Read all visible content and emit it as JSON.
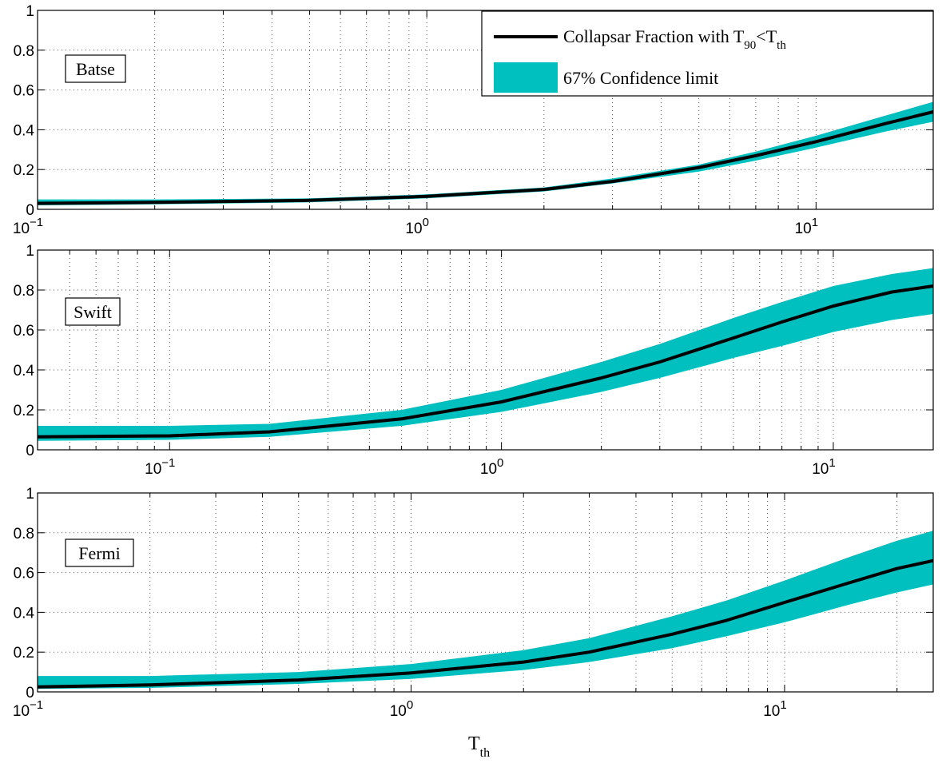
{
  "colors": {
    "band": "#00BFBF",
    "line": "#000000"
  },
  "legend": {
    "line_label": "Collapsar Fraction with T",
    "line_label_sub1": "90",
    "line_label_mid": "<T",
    "line_label_sub2": "th",
    "band_label": "67% Confidence limit",
    "placement": "top-right"
  },
  "xlabel": {
    "main": "T",
    "sub": "th"
  },
  "chart_data": [
    {
      "type": "line",
      "panel_label": "Batse",
      "x_scale": "log",
      "xlim": [
        0.1,
        20
      ],
      "ylim": [
        0,
        1
      ],
      "grid": true,
      "y_ticks": [
        "0",
        "0.2",
        "0.4",
        "0.6",
        "0.8",
        "1"
      ],
      "x_ticks": [
        {
          "value": 0.1,
          "base": "10",
          "exp": "−1"
        },
        {
          "value": 1,
          "base": "10",
          "exp": "0"
        },
        {
          "value": 10,
          "base": "10",
          "exp": "1"
        }
      ],
      "series": [
        {
          "x": [
            0.1,
            0.2,
            0.5,
            1,
            2,
            3,
            5,
            7,
            10,
            15,
            20
          ],
          "y": [
            0.03,
            0.035,
            0.045,
            0.065,
            0.1,
            0.14,
            0.21,
            0.27,
            0.34,
            0.43,
            0.49
          ],
          "lower": [
            0.02,
            0.025,
            0.035,
            0.055,
            0.09,
            0.13,
            0.19,
            0.245,
            0.31,
            0.39,
            0.44
          ],
          "upper": [
            0.05,
            0.05,
            0.055,
            0.075,
            0.11,
            0.155,
            0.225,
            0.29,
            0.37,
            0.47,
            0.54
          ]
        }
      ]
    },
    {
      "type": "line",
      "panel_label": "Swift",
      "x_scale": "log",
      "xlim": [
        0.04,
        20
      ],
      "ylim": [
        0,
        1
      ],
      "grid": true,
      "y_ticks": [
        "0",
        "0.2",
        "0.4",
        "0.6",
        "0.8",
        "1"
      ],
      "x_ticks": [
        {
          "value": 0.1,
          "base": "10",
          "exp": "−1"
        },
        {
          "value": 1,
          "base": "10",
          "exp": "0"
        },
        {
          "value": 10,
          "base": "10",
          "exp": "1"
        }
      ],
      "series": [
        {
          "x": [
            0.04,
            0.1,
            0.2,
            0.5,
            1,
            2,
            3,
            5,
            7,
            10,
            15,
            20
          ],
          "y": [
            0.065,
            0.07,
            0.09,
            0.155,
            0.24,
            0.36,
            0.44,
            0.56,
            0.64,
            0.72,
            0.79,
            0.82
          ],
          "lower": [
            0.045,
            0.05,
            0.065,
            0.12,
            0.19,
            0.29,
            0.36,
            0.46,
            0.52,
            0.59,
            0.65,
            0.68
          ],
          "upper": [
            0.12,
            0.12,
            0.13,
            0.2,
            0.3,
            0.44,
            0.53,
            0.66,
            0.74,
            0.82,
            0.88,
            0.91
          ]
        }
      ]
    },
    {
      "type": "line",
      "panel_label": "Fermi",
      "x_scale": "log",
      "xlim": [
        0.1,
        25
      ],
      "ylim": [
        0,
        1
      ],
      "grid": true,
      "y_ticks": [
        "0",
        "0.2",
        "0.4",
        "0.6",
        "0.8",
        "1"
      ],
      "x_ticks": [
        {
          "value": 0.1,
          "base": "10",
          "exp": "−1"
        },
        {
          "value": 1,
          "base": "10",
          "exp": "0"
        },
        {
          "value": 10,
          "base": "10",
          "exp": "1"
        }
      ],
      "series": [
        {
          "x": [
            0.1,
            0.2,
            0.5,
            1,
            2,
            3,
            5,
            7,
            10,
            15,
            20,
            25
          ],
          "y": [
            0.025,
            0.035,
            0.06,
            0.095,
            0.15,
            0.2,
            0.29,
            0.36,
            0.45,
            0.55,
            0.62,
            0.66
          ],
          "lower": [
            0.015,
            0.02,
            0.04,
            0.065,
            0.11,
            0.15,
            0.22,
            0.28,
            0.35,
            0.44,
            0.5,
            0.54
          ],
          "upper": [
            0.08,
            0.08,
            0.1,
            0.14,
            0.21,
            0.27,
            0.38,
            0.46,
            0.56,
            0.68,
            0.76,
            0.81
          ]
        }
      ]
    }
  ]
}
